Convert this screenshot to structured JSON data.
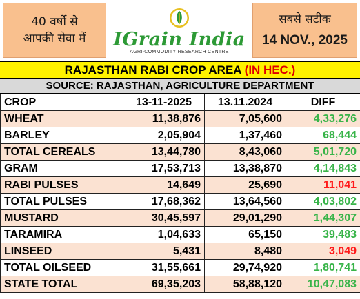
{
  "header": {
    "tagline_line1": "40 वर्षो से",
    "tagline_line2": "आपकी सेवा में",
    "brand": "IGrain India",
    "brand_subtitle": "AGRI-COMMODITY RESEARCH CENTRE",
    "right_hindi": "सबसे सटीक",
    "date": "14 NOV., 2025",
    "colors": {
      "header_box": "#f9c08e",
      "brand_green": "#2d9a36",
      "title_bg": "#fff200"
    }
  },
  "title": {
    "main": "RAJASTHAN RABI CROP AREA ",
    "unit": "(IN HEC.)"
  },
  "source": "SOURCE: RAJASTHAN, AGRICULTURE DEPARTMENT",
  "table": {
    "headers": [
      "CROP",
      "13-11-2025",
      "13.11.2024",
      "DIFF"
    ],
    "rows": [
      {
        "crop": "WHEAT",
        "y2025": "11,38,876",
        "y2024": "7,05,600",
        "diff": "4,33,276",
        "sign": "pos"
      },
      {
        "crop": "BARLEY",
        "y2025": "2,05,904",
        "y2024": "1,37,460",
        "diff": "68,444",
        "sign": "pos"
      },
      {
        "crop": "TOTAL CEREALS",
        "y2025": "13,44,780",
        "y2024": "8,43,060",
        "diff": "5,01,720",
        "sign": "pos"
      },
      {
        "crop": "GRAM",
        "y2025": "17,53,713",
        "y2024": "13,38,870",
        "diff": "4,14,843",
        "sign": "pos"
      },
      {
        "crop": "RABI PULSES",
        "y2025": "14,649",
        "y2024": "25,690",
        "diff": "11,041",
        "sign": "neg"
      },
      {
        "crop": "TOTAL PULSES",
        "y2025": "17,68,362",
        "y2024": "13,64,560",
        "diff": "4,03,802",
        "sign": "pos"
      },
      {
        "crop": "MUSTARD",
        "y2025": "30,45,597",
        "y2024": "29,01,290",
        "diff": "1,44,307",
        "sign": "pos"
      },
      {
        "crop": "TARAMIRA",
        "y2025": "1,04,633",
        "y2024": "65,150",
        "diff": "39,483",
        "sign": "pos"
      },
      {
        "crop": "LINSEED",
        "y2025": "5,431",
        "y2024": "8,480",
        "diff": "3,049",
        "sign": "neg"
      },
      {
        "crop": "TOTAL OILSEED",
        "y2025": "31,55,661",
        "y2024": "29,74,920",
        "diff": "1,80,741",
        "sign": "pos"
      },
      {
        "crop": "STATE TOTAL",
        "y2025": "69,35,203",
        "y2024": "58,88,120",
        "diff": "10,47,083",
        "sign": "pos"
      }
    ]
  }
}
